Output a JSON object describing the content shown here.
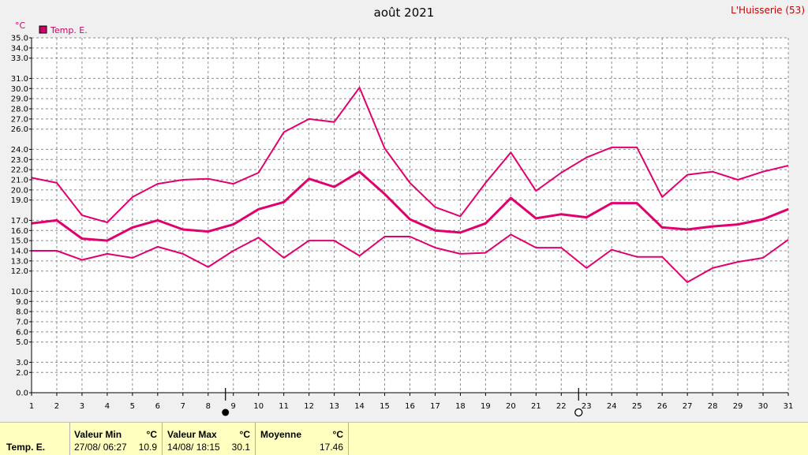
{
  "station": "L'Huisserie (53)",
  "chart_data": {
    "type": "line",
    "title": "août 2021",
    "ylabel": "°C",
    "legend": "Temp. E.",
    "legend_color": "#cc0066",
    "line_color": "#e0006e",
    "x": [
      1,
      2,
      3,
      4,
      5,
      6,
      7,
      8,
      9,
      10,
      11,
      12,
      13,
      14,
      15,
      16,
      17,
      18,
      19,
      20,
      21,
      22,
      23,
      24,
      25,
      26,
      27,
      28,
      29,
      30,
      31
    ],
    "xlim": [
      1,
      31
    ],
    "ylim": [
      0,
      35
    ],
    "y_ticks": [
      "0.0",
      "2.0",
      "3.0",
      "5.0",
      "6.0",
      "7.0",
      "8.0",
      "9.0",
      "10.0",
      "12.0",
      "13.0",
      "14.0",
      "15.0",
      "16.0",
      "17.0",
      "19.0",
      "20.0",
      "21.0",
      "22.0",
      "23.0",
      "24.0",
      "26.0",
      "27.0",
      "28.0",
      "29.0",
      "30.0",
      "31.0",
      "33.0",
      "34.0",
      "35.0"
    ],
    "grid": true,
    "series": [
      {
        "values": [
          21.2,
          20.7,
          17.5,
          16.8,
          19.3,
          20.6,
          21.0,
          21.1,
          20.6,
          21.7,
          25.7,
          27.0,
          26.7,
          30.1,
          24.1,
          20.7,
          18.3,
          17.4,
          20.7,
          23.7,
          19.9,
          21.7,
          23.2,
          24.2,
          24.2,
          19.3,
          21.5,
          21.8,
          21.0,
          21.8,
          22.4
        ]
      },
      {
        "values": [
          16.7,
          17.0,
          15.2,
          15.0,
          16.3,
          17.0,
          16.1,
          15.9,
          16.6,
          18.1,
          18.8,
          21.1,
          20.3,
          21.8,
          19.6,
          17.1,
          16.0,
          15.8,
          16.7,
          19.2,
          17.2,
          17.6,
          17.3,
          18.7,
          18.7,
          16.3,
          16.1,
          16.4,
          16.6,
          17.1,
          18.1
        ]
      },
      {
        "values": [
          14.0,
          14.0,
          13.1,
          13.7,
          13.3,
          14.4,
          13.7,
          12.4,
          14.0,
          15.3,
          13.3,
          15.0,
          15.0,
          13.5,
          15.4,
          15.4,
          14.3,
          13.7,
          13.8,
          15.6,
          14.3,
          14.3,
          12.3,
          14.1,
          13.4,
          13.4,
          10.9,
          12.3,
          12.9,
          13.3,
          15.1
        ]
      }
    ],
    "moon_markers": [
      {
        "day": 9,
        "phase": "new-moon"
      },
      {
        "day": 23,
        "phase": "full-moon"
      }
    ]
  },
  "footer": {
    "series_name": "Temp. E.",
    "min": {
      "header": "Valeur Min",
      "unit": "°C",
      "when": "27/08/ 06:27",
      "value": "10.9"
    },
    "max": {
      "header": "Valeur Max",
      "unit": "°C",
      "when": "14/08/ 18:15",
      "value": "30.1"
    },
    "mean": {
      "header": "Moyenne",
      "unit": "°C",
      "value": "17.46"
    }
  }
}
